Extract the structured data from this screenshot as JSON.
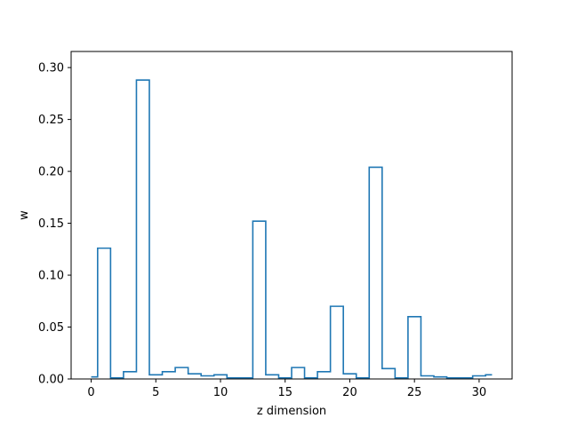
{
  "chart_data": {
    "type": "step",
    "title": "",
    "xlabel": "z dimension",
    "ylabel": "w",
    "xlim": [
      -1.55,
      32.55
    ],
    "ylim": [
      0,
      0.3155
    ],
    "xticks": [
      0,
      5,
      10,
      15,
      20,
      25,
      30
    ],
    "xtick_labels": [
      "0",
      "5",
      "10",
      "15",
      "20",
      "25",
      "30"
    ],
    "yticks": [
      0.0,
      0.05,
      0.1,
      0.15,
      0.2,
      0.25,
      0.3
    ],
    "ytick_labels": [
      "0.00",
      "0.05",
      "0.10",
      "0.15",
      "0.20",
      "0.25",
      "0.30"
    ],
    "grid": false,
    "line_color": "#1f77b4",
    "x": [
      0,
      1,
      2,
      3,
      4,
      5,
      6,
      7,
      8,
      9,
      10,
      11,
      12,
      13,
      14,
      15,
      16,
      17,
      18,
      19,
      20,
      21,
      22,
      23,
      24,
      25,
      26,
      27,
      28,
      29,
      30,
      31
    ],
    "values": [
      0.002,
      0.126,
      0.001,
      0.007,
      0.288,
      0.004,
      0.007,
      0.011,
      0.005,
      0.003,
      0.004,
      0.001,
      0.001,
      0.152,
      0.004,
      0.001,
      0.011,
      0.001,
      0.007,
      0.07,
      0.005,
      0.001,
      0.204,
      0.01,
      0.001,
      0.06,
      0.003,
      0.002,
      0.001,
      0.001,
      0.003,
      0.004
    ]
  }
}
